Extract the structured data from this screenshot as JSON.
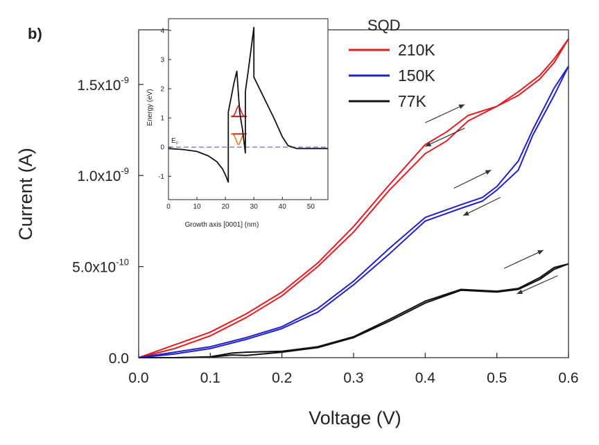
{
  "panel_label": "b)",
  "chart_data": [
    {
      "type": "line",
      "xlabel": "Voltage (V)",
      "ylabel": "Current (A)",
      "xlim": [
        0.0,
        0.6
      ],
      "ylim": [
        0,
        1.8e-09
      ],
      "x_ticks": [
        {
          "value": 0.0,
          "label": "0.0"
        },
        {
          "value": 0.1,
          "label": "0.1"
        },
        {
          "value": 0.2,
          "label": "0.2"
        },
        {
          "value": 0.3,
          "label": "0.3"
        },
        {
          "value": 0.4,
          "label": "0.4"
        },
        {
          "value": 0.5,
          "label": "0.5"
        },
        {
          "value": 0.6,
          "label": "0.6"
        }
      ],
      "y_ticks": [
        {
          "value": 0,
          "mant": "0.0",
          "exp": ""
        },
        {
          "value": 5e-10,
          "mant": "5.0x10",
          "exp": "-10"
        },
        {
          "value": 1e-09,
          "mant": "1.0x10",
          "exp": "-9"
        },
        {
          "value": 1.5e-09,
          "mant": "1.5x10",
          "exp": "-9"
        }
      ],
      "legend": {
        "title": "SQD",
        "position": "top-right"
      },
      "grid": false,
      "series": [
        {
          "name": "210K",
          "color": "#e8191e",
          "x": [
            0,
            0.05,
            0.1,
            0.15,
            0.2,
            0.25,
            0.3,
            0.35,
            0.4,
            0.43,
            0.46,
            0.5,
            0.53,
            0.56,
            0.58,
            0.6
          ],
          "y": [
            0,
            7e-11,
            1.4e-10,
            2.4e-10,
            3.6e-10,
            5.2e-10,
            7.2e-10,
            9.5e-10,
            1.17e-09,
            1.24e-09,
            1.33e-09,
            1.38e-09,
            1.46e-09,
            1.55e-09,
            1.64e-09,
            1.75e-09
          ],
          "y_return": [
            0,
            5e-11,
            1.2e-10,
            2.2e-10,
            3.4e-10,
            5e-10,
            6.9e-10,
            9.2e-10,
            1.12e-09,
            1.19e-09,
            1.3e-09,
            1.38e-09,
            1.44e-09,
            1.53e-09,
            1.62e-09,
            1.75e-09
          ]
        },
        {
          "name": "150K",
          "color": "#1f1fcc",
          "x": [
            0,
            0.05,
            0.1,
            0.15,
            0.2,
            0.25,
            0.3,
            0.35,
            0.4,
            0.45,
            0.48,
            0.5,
            0.53,
            0.55,
            0.58,
            0.6
          ],
          "y": [
            0,
            3e-11,
            6e-11,
            1.1e-10,
            1.7e-10,
            2.7e-10,
            4.2e-10,
            6e-10,
            7.7e-10,
            8.4e-10,
            8.8e-10,
            9.4e-10,
            1.08e-09,
            1.25e-09,
            1.48e-09,
            1.6e-09
          ],
          "y_return": [
            0,
            2e-11,
            5e-11,
            1e-10,
            1.6e-10,
            2.5e-10,
            4e-10,
            5.7e-10,
            7.5e-10,
            8.2e-10,
            8.6e-10,
            9.2e-10,
            1.03e-09,
            1.22e-09,
            1.44e-09,
            1.6e-09
          ]
        },
        {
          "name": "77K",
          "color": "#111111",
          "x": [
            0,
            0.05,
            0.1,
            0.13,
            0.15,
            0.2,
            0.25,
            0.3,
            0.35,
            0.4,
            0.45,
            0.5,
            0.53,
            0.56,
            0.58,
            0.6
          ],
          "y": [
            0,
            0,
            5e-12,
            2.5e-11,
            3e-11,
            3.5e-11,
            6e-11,
            1.15e-10,
            2.1e-10,
            3.1e-10,
            3.75e-10,
            3.65e-10,
            3.8e-10,
            4.4e-10,
            4.95e-10,
            5.15e-10
          ],
          "y_return": [
            0,
            0,
            3e-12,
            1.5e-11,
            1.2e-11,
            3e-11,
            5.5e-11,
            1.1e-10,
            2e-10,
            3e-10,
            3.7e-10,
            3.6e-10,
            3.75e-10,
            4.3e-10,
            4.85e-10,
            5.15e-10
          ]
        }
      ],
      "arrows": [
        {
          "x": 0.4,
          "y": 1.29e-09,
          "dx": 0.055,
          "dy": 1e-10
        },
        {
          "x": 0.455,
          "y": 1.26e-09,
          "dx": -0.055,
          "dy": -1e-10
        },
        {
          "x": 0.44,
          "y": 9.3e-10,
          "dx": 0.052,
          "dy": 1e-10
        },
        {
          "x": 0.505,
          "y": 8.8e-10,
          "dx": -0.052,
          "dy": -1e-10
        },
        {
          "x": 0.51,
          "y": 4.9e-10,
          "dx": 0.055,
          "dy": 1e-10
        },
        {
          "x": 0.585,
          "y": 4.5e-10,
          "dx": -0.057,
          "dy": -1e-10
        }
      ]
    },
    {
      "type": "line",
      "xlabel": "Growth axis [0001] (nm)",
      "ylabel": "Energy (eV)",
      "xlim": [
        0,
        56
      ],
      "ylim": [
        -1.8,
        4.4
      ],
      "x_ticks": [
        0,
        10,
        20,
        30,
        40,
        50
      ],
      "y_ticks": [
        -1,
        0,
        1,
        2,
        3,
        4
      ],
      "fermi_label": "E",
      "fermi_sub": "F",
      "fermi_color": "#6f6fd6",
      "series": [
        {
          "color": "#111111",
          "x": [
            0,
            5,
            10,
            14,
            17,
            19,
            20,
            21,
            21,
            22,
            23,
            24,
            25,
            26,
            27,
            27,
            28,
            30,
            30,
            31,
            34,
            37,
            40,
            42,
            45,
            56
          ],
          "y": [
            -0.05,
            -0.08,
            -0.15,
            -0.3,
            -0.5,
            -0.75,
            -0.95,
            -1.2,
            1.2,
            1.7,
            2.2,
            2.6,
            1.2,
            0.6,
            -0.2,
            1.9,
            2.6,
            4.1,
            2.4,
            2.2,
            1.6,
            1.0,
            0.35,
            0.05,
            -0.05,
            -0.05
          ]
        }
      ],
      "levels": [
        {
          "x1": 22,
          "x2": 27.5,
          "y": 1.05,
          "color": "#cc2a1a"
        },
        {
          "x1": 22,
          "x2": 27.5,
          "y": 0.45,
          "color": "#cc2a1a"
        }
      ],
      "wavefunctions": [
        {
          "color": "#e8191e",
          "base": 1.05
        },
        {
          "color": "#e87b1e",
          "base": 0.45
        }
      ]
    }
  ]
}
